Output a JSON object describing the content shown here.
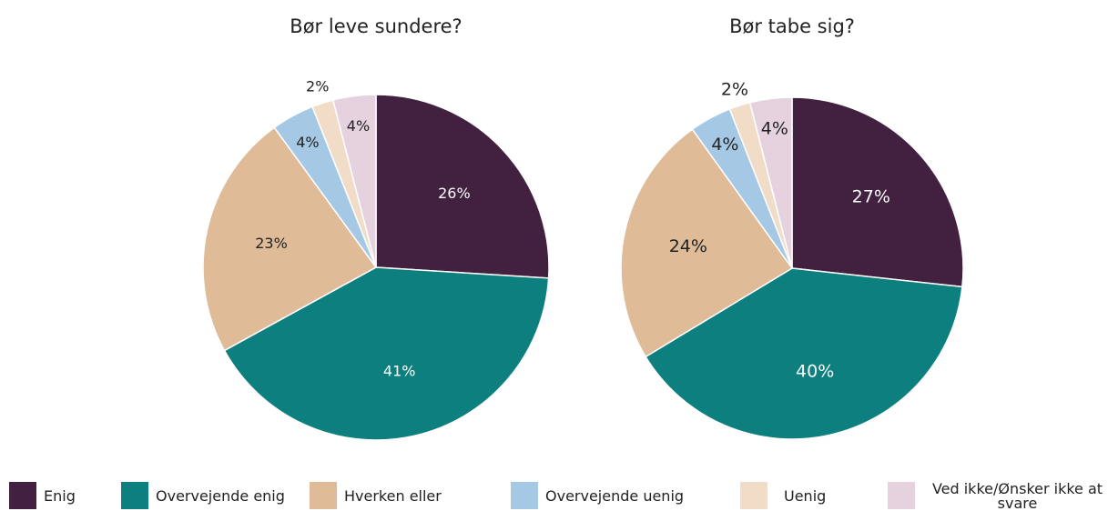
{
  "chart_data": [
    {
      "type": "pie",
      "title": "Bør leve sundere?",
      "values": [
        26,
        41,
        23,
        4,
        2,
        4
      ],
      "value_labels": [
        "26%",
        "41%",
        "23%",
        "4%",
        "2%",
        "4%"
      ]
    },
    {
      "type": "pie",
      "title": "Bør tabe sig?",
      "values": [
        27,
        40,
        24,
        4,
        2,
        4
      ],
      "value_labels": [
        "27%",
        "40%",
        "24%",
        "4%",
        "2%",
        "4%"
      ]
    }
  ],
  "legend": {
    "labels": [
      "Enig",
      "Overvejende enig",
      "Hverken eller",
      "Overvejende uenig",
      "Uenig",
      "Ved ikke/Ønsker ikke at svare"
    ],
    "colors": [
      "#42203f",
      "#0e7f7f",
      "#dfbb98",
      "#a5c8e4",
      "#f1dcc8",
      "#e6d2de"
    ]
  }
}
